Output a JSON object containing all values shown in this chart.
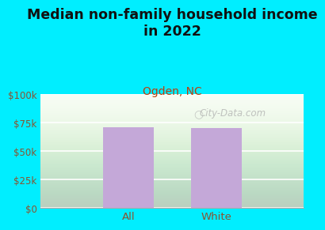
{
  "title": "Median non-family household income\nin 2022",
  "subtitle": "Ogden, NC",
  "categories": [
    "All",
    "White"
  ],
  "values": [
    71000,
    70000
  ],
  "bar_color": "#c4a8d8",
  "background_outer": "#00eeff",
  "yticks": [
    0,
    25000,
    50000,
    75000,
    100000
  ],
  "ytick_labels": [
    "$0",
    "$25k",
    "$50k",
    "$75k",
    "$100k"
  ],
  "ylim": [
    0,
    100000
  ],
  "title_fontsize": 12.5,
  "subtitle_fontsize": 10,
  "subtitle_color": "#b84010",
  "title_color": "#111111",
  "tick_color": "#885533",
  "watermark": "City-Data.com"
}
